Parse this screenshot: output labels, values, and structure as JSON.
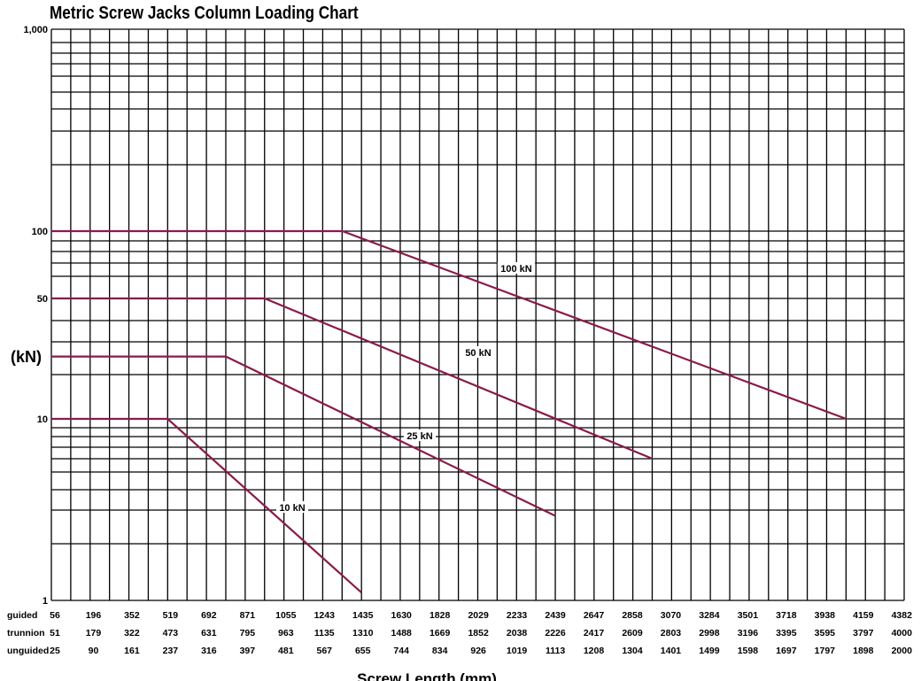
{
  "chart_data": {
    "type": "line",
    "title": "Metric Screw Jacks Column Loading Chart",
    "xlabel": "Screw Length (mm)",
    "ylabel": "(kN)",
    "yscale": "log",
    "ylim": [
      1,
      1000
    ],
    "ytick_labels": [
      {
        "value": 1000,
        "label": "1,000"
      },
      {
        "value": 100,
        "label": "100"
      },
      {
        "value": 50,
        "label": "50"
      },
      {
        "value": 10,
        "label": "10"
      },
      {
        "value": 1,
        "label": "1"
      }
    ],
    "grid": true,
    "x_rows": [
      {
        "name": "guided",
        "values": [
          56,
          196,
          352,
          519,
          692,
          871,
          1055,
          1243,
          1435,
          1630,
          1828,
          2029,
          2233,
          2439,
          2647,
          2858,
          3070,
          3284,
          3501,
          3718,
          3938,
          4159,
          4382
        ]
      },
      {
        "name": "trunnion",
        "values": [
          51,
          179,
          322,
          473,
          631,
          795,
          963,
          1135,
          1310,
          1488,
          1669,
          1852,
          2038,
          2226,
          2417,
          2609,
          2803,
          2998,
          3196,
          3395,
          3595,
          3797,
          4000
        ]
      },
      {
        "name": "unguided",
        "values": [
          25,
          90,
          161,
          237,
          316,
          397,
          481,
          567,
          655,
          744,
          834,
          926,
          1019,
          1113,
          1208,
          1304,
          1401,
          1499,
          1598,
          1697,
          1797,
          1898,
          2000
        ]
      }
    ],
    "x_reference_row": "guided",
    "series": [
      {
        "name": "100 kN",
        "points": [
          [
            56,
            100
          ],
          [
            1340,
            100
          ],
          [
            4050,
            10
          ]
        ]
      },
      {
        "name": "50 kN",
        "points": [
          [
            56,
            50
          ],
          [
            963,
            50
          ],
          [
            2965,
            6
          ]
        ]
      },
      {
        "name": "25 kN",
        "points": [
          [
            56,
            25
          ],
          [
            782,
            25
          ],
          [
            2439,
            2.8
          ]
        ]
      },
      {
        "name": "10 kN",
        "points": [
          [
            56,
            10
          ],
          [
            519,
            10
          ],
          [
            1435,
            1.1
          ]
        ]
      }
    ],
    "line_color": "#8b1a4a"
  }
}
